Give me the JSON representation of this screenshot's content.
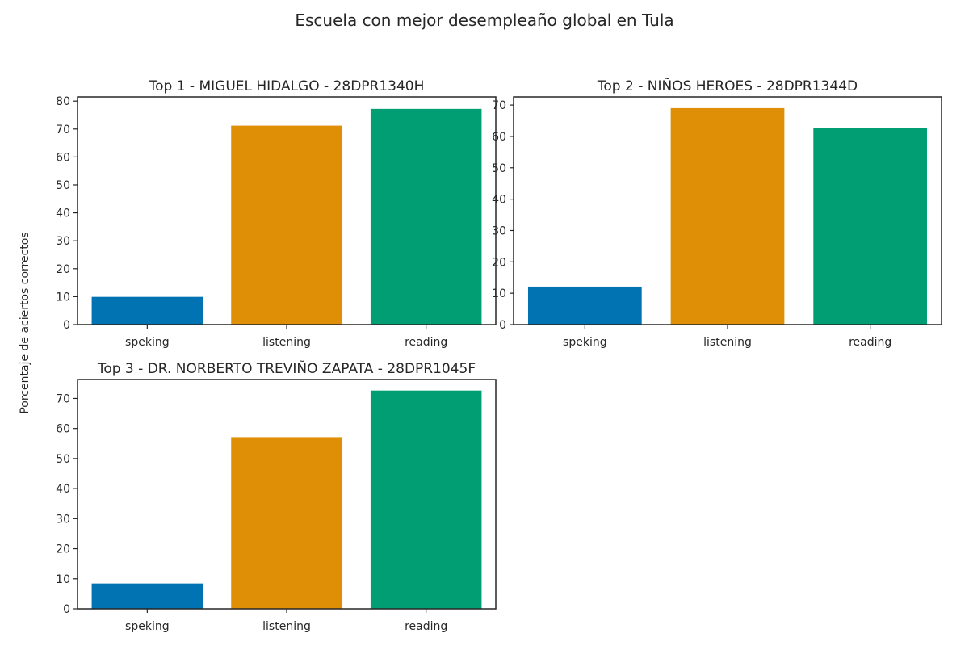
{
  "figure": {
    "title": "Escuela con mejor desempleaño global en Tula",
    "ylabel": "Porcentaje de aciertos correctos"
  },
  "chart_data": [
    {
      "type": "bar",
      "title": "Top  1 - MIGUEL HIDALGO - 28DPR1340H",
      "categories": [
        "speking",
        "listening",
        "reading"
      ],
      "values": [
        10.0,
        71.3,
        77.3
      ],
      "colors": [
        "#0173b2",
        "#de8f05",
        "#029e73"
      ],
      "ylim": [
        0,
        81.5
      ],
      "yticks": [
        0,
        10,
        20,
        30,
        40,
        50,
        60,
        70,
        80
      ],
      "xlabel": "",
      "ylabel": ""
    },
    {
      "type": "bar",
      "title": "Top  2 - NIÑOS HEROES - 28DPR1344D",
      "categories": [
        "speking",
        "listening",
        "reading"
      ],
      "values": [
        12.2,
        69.1,
        62.7
      ],
      "colors": [
        "#0173b2",
        "#de8f05",
        "#029e73"
      ],
      "ylim": [
        0,
        72.6
      ],
      "yticks": [
        0,
        10,
        20,
        30,
        40,
        50,
        60,
        70
      ],
      "xlabel": "",
      "ylabel": ""
    },
    {
      "type": "bar",
      "title": "Top  3 - DR. NORBERTO TREVIÑO ZAPATA - 28DPR1045F",
      "categories": [
        "speking",
        "listening",
        "reading"
      ],
      "values": [
        8.5,
        57.2,
        72.7
      ],
      "colors": [
        "#0173b2",
        "#de8f05",
        "#029e73"
      ],
      "ylim": [
        0,
        76.3
      ],
      "yticks": [
        0,
        10,
        20,
        30,
        40,
        50,
        60,
        70
      ],
      "xlabel": "",
      "ylabel": ""
    }
  ]
}
